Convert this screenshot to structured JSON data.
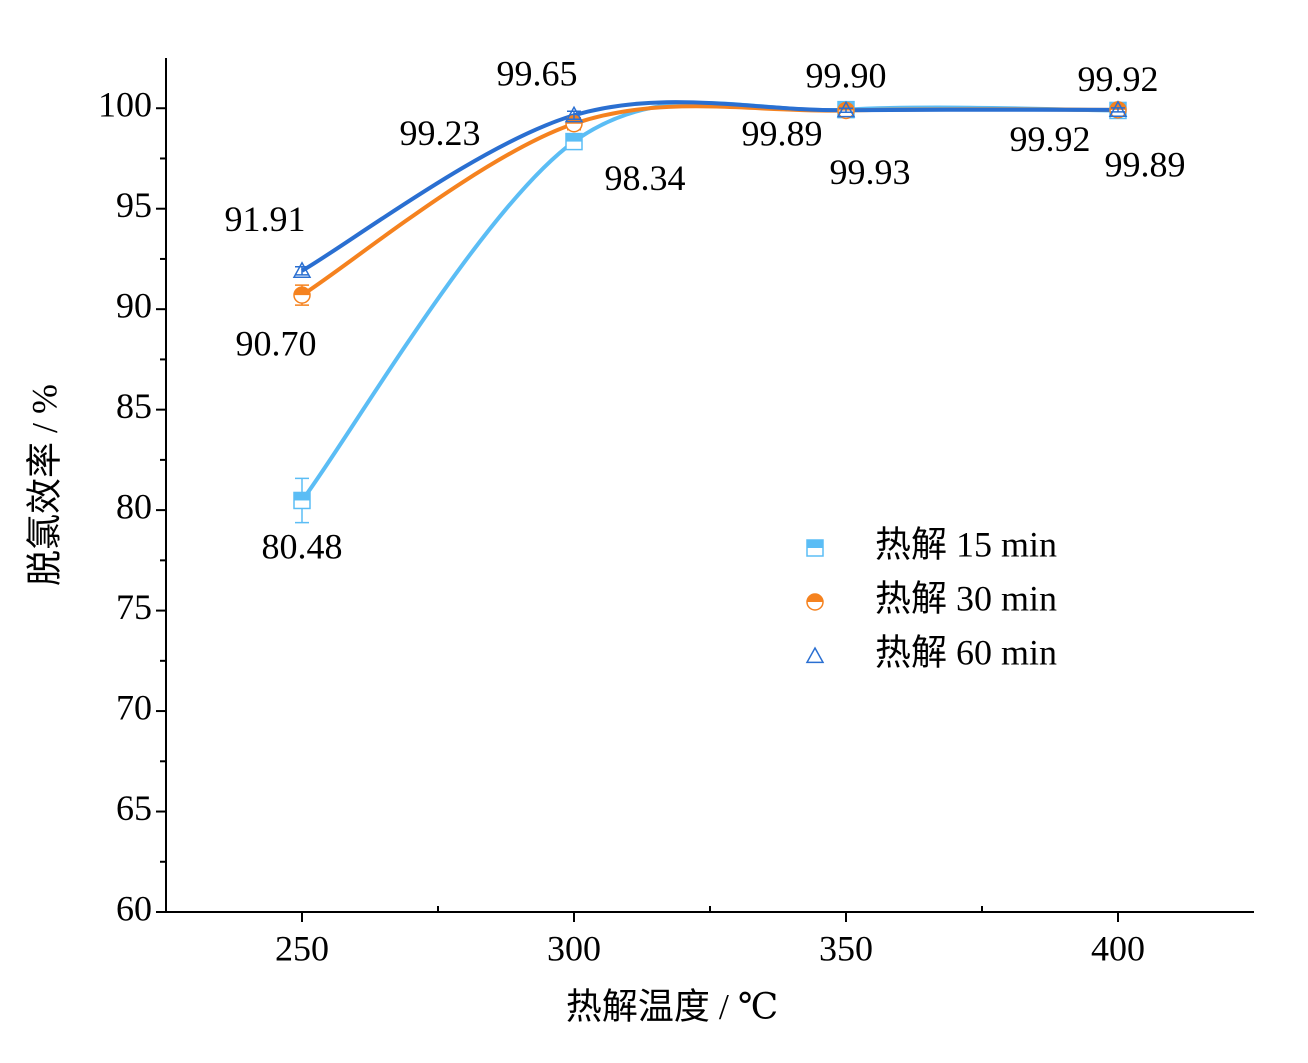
{
  "chart_data": {
    "type": "line",
    "xlabel": "热解温度 / ℃",
    "ylabel": "脱氯效率 / %",
    "x": [
      250,
      300,
      350,
      400
    ],
    "series": [
      {
        "name": "热解 15 min",
        "color": "#5bbdf5",
        "marker": "square",
        "values": [
          80.48,
          98.34,
          99.93,
          99.89
        ],
        "value_labels": [
          "80.48",
          "98.34",
          "99.93",
          "99.89"
        ],
        "errors": [
          1.1,
          0.3,
          0.1,
          0.1
        ]
      },
      {
        "name": "热解 30 min",
        "color": "#f5821f",
        "marker": "circle",
        "values": [
          90.7,
          99.23,
          99.89,
          99.92
        ],
        "value_labels": [
          "90.70",
          "99.23",
          "99.89",
          "99.92"
        ],
        "errors": [
          0.5,
          0.3,
          0.1,
          0.2
        ]
      },
      {
        "name": "热解 60 min",
        "color": "#2a6fd1",
        "marker": "triangle",
        "values": [
          91.91,
          99.65,
          99.9,
          99.92
        ],
        "value_labels": [
          "91.91",
          "99.65",
          "99.90",
          "99.92"
        ],
        "errors": [
          0.2,
          0.2,
          0.1,
          0.1
        ]
      }
    ],
    "xlim": [
      225,
      425
    ],
    "xticks": [
      250,
      300,
      350,
      400
    ],
    "ylim": [
      60,
      102.5
    ],
    "yticks": [
      60,
      65,
      70,
      75,
      80,
      85,
      90,
      95,
      100
    ],
    "smooth": true,
    "grid": false
  }
}
